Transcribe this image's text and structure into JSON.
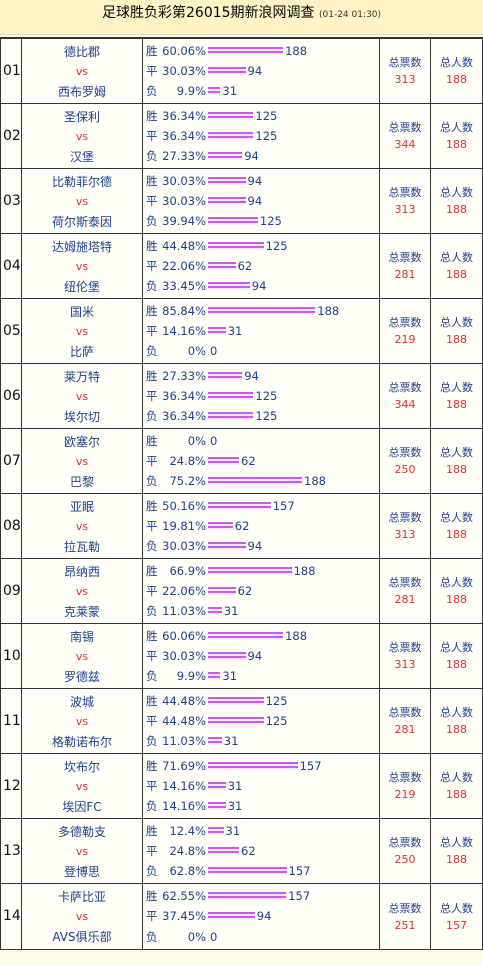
{
  "header": {
    "title": "足球胜负彩第26015期新浪网调查",
    "date": "(01-24 01:30)"
  },
  "labels": {
    "win": "胜",
    "draw": "平",
    "lose": "负",
    "vs": "vs",
    "total_votes": "总票数",
    "total_people": "总人数"
  },
  "matches": [
    {
      "no": "01",
      "home": "德比郡",
      "away": "西布罗姆",
      "w": {
        "pct": "60.06%",
        "count": "188"
      },
      "d": {
        "pct": "30.03%",
        "count": "94"
      },
      "l": {
        "pct": "9.9%",
        "count": "31"
      },
      "votes": "313",
      "people": "188"
    },
    {
      "no": "02",
      "home": "圣保利",
      "away": "汉堡",
      "w": {
        "pct": "36.34%",
        "count": "125"
      },
      "d": {
        "pct": "36.34%",
        "count": "125"
      },
      "l": {
        "pct": "27.33%",
        "count": "94"
      },
      "votes": "344",
      "people": "188"
    },
    {
      "no": "03",
      "home": "比勒菲尔德",
      "away": "荷尔斯泰因",
      "w": {
        "pct": "30.03%",
        "count": "94"
      },
      "d": {
        "pct": "30.03%",
        "count": "94"
      },
      "l": {
        "pct": "39.94%",
        "count": "125"
      },
      "votes": "313",
      "people": "188"
    },
    {
      "no": "04",
      "home": "达姆施塔特",
      "away": "纽伦堡",
      "w": {
        "pct": "44.48%",
        "count": "125"
      },
      "d": {
        "pct": "22.06%",
        "count": "62"
      },
      "l": {
        "pct": "33.45%",
        "count": "94"
      },
      "votes": "281",
      "people": "188"
    },
    {
      "no": "05",
      "home": "国米",
      "away": "比萨",
      "w": {
        "pct": "85.84%",
        "count": "188"
      },
      "d": {
        "pct": "14.16%",
        "count": "31"
      },
      "l": {
        "pct": "0%",
        "count": "0"
      },
      "votes": "219",
      "people": "188"
    },
    {
      "no": "06",
      "home": "莱万特",
      "away": "埃尔切",
      "w": {
        "pct": "27.33%",
        "count": "94"
      },
      "d": {
        "pct": "36.34%",
        "count": "125"
      },
      "l": {
        "pct": "36.34%",
        "count": "125"
      },
      "votes": "344",
      "people": "188"
    },
    {
      "no": "07",
      "home": "欧塞尔",
      "away": "巴黎",
      "w": {
        "pct": "0%",
        "count": "0"
      },
      "d": {
        "pct": "24.8%",
        "count": "62"
      },
      "l": {
        "pct": "75.2%",
        "count": "188"
      },
      "votes": "250",
      "people": "188"
    },
    {
      "no": "08",
      "home": "亚眠",
      "away": "拉瓦勒",
      "w": {
        "pct": "50.16%",
        "count": "157"
      },
      "d": {
        "pct": "19.81%",
        "count": "62"
      },
      "l": {
        "pct": "30.03%",
        "count": "94"
      },
      "votes": "313",
      "people": "188"
    },
    {
      "no": "09",
      "home": "昂纳西",
      "away": "克莱蒙",
      "w": {
        "pct": "66.9%",
        "count": "188"
      },
      "d": {
        "pct": "22.06%",
        "count": "62"
      },
      "l": {
        "pct": "11.03%",
        "count": "31"
      },
      "votes": "281",
      "people": "188"
    },
    {
      "no": "10",
      "home": "南锡",
      "away": "罗德兹",
      "w": {
        "pct": "60.06%",
        "count": "188"
      },
      "d": {
        "pct": "30.03%",
        "count": "94"
      },
      "l": {
        "pct": "9.9%",
        "count": "31"
      },
      "votes": "313",
      "people": "188"
    },
    {
      "no": "11",
      "home": "波城",
      "away": "格勒诺布尔",
      "w": {
        "pct": "44.48%",
        "count": "125"
      },
      "d": {
        "pct": "44.48%",
        "count": "125"
      },
      "l": {
        "pct": "11.03%",
        "count": "31"
      },
      "votes": "281",
      "people": "188"
    },
    {
      "no": "12",
      "home": "坎布尔",
      "away": "埃因FC",
      "w": {
        "pct": "71.69%",
        "count": "157"
      },
      "d": {
        "pct": "14.16%",
        "count": "31"
      },
      "l": {
        "pct": "14.16%",
        "count": "31"
      },
      "votes": "219",
      "people": "188"
    },
    {
      "no": "13",
      "home": "多德勒支",
      "away": "登博思",
      "w": {
        "pct": "12.4%",
        "count": "31"
      },
      "d": {
        "pct": "24.8%",
        "count": "62"
      },
      "l": {
        "pct": "62.8%",
        "count": "157"
      },
      "votes": "250",
      "people": "188"
    },
    {
      "no": "14",
      "home": "卡萨比亚",
      "away": "AVS俱乐部",
      "w": {
        "pct": "62.55%",
        "count": "157"
      },
      "d": {
        "pct": "37.45%",
        "count": "94"
      },
      "l": {
        "pct": "0%",
        "count": "0"
      },
      "votes": "251",
      "people": "157"
    }
  ]
}
